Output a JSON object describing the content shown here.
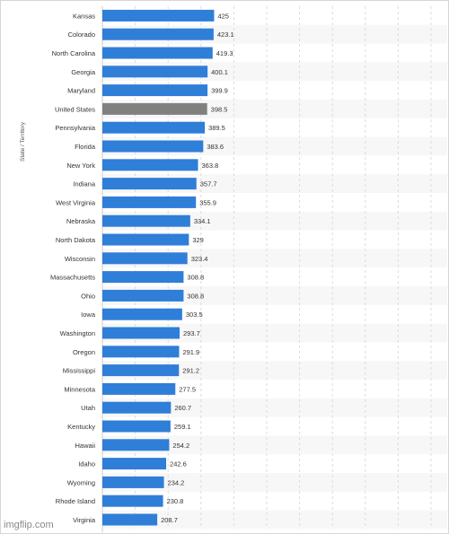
{
  "chart_data": {
    "type": "bar",
    "orientation": "horizontal",
    "ylabel": "State / Territory",
    "categories": [
      "Kansas",
      "Colorado",
      "North Carolina",
      "Georgia",
      "Maryland",
      "United States",
      "Pennsylvania",
      "Florida",
      "New York",
      "Indiana",
      "West Virginia",
      "Nebraska",
      "North Dakota",
      "Wisconsin",
      "Massachusetts",
      "Ohio",
      "Iowa",
      "Washington",
      "Oregon",
      "Mississippi",
      "Minnesota",
      "Utah",
      "Kentucky",
      "Hawaii",
      "Idaho",
      "Wyoming",
      "Rhode Island",
      "Virginia"
    ],
    "values": [
      425,
      423.1,
      419.3,
      400.1,
      399.9,
      398.5,
      389.5,
      383.6,
      363.8,
      357.7,
      355.9,
      334.1,
      329,
      323.4,
      308.8,
      308.8,
      303.5,
      293.7,
      291.9,
      291.2,
      277.5,
      260.7,
      259.1,
      254.2,
      242.6,
      234.2,
      230.8,
      208.7
    ],
    "value_labels": [
      "425",
      "423.1",
      "419.3",
      "400.1",
      "399.9",
      "398.5",
      "389.5",
      "383.6",
      "363.8",
      "357.7",
      "355.9",
      "334.1",
      "329",
      "323.4",
      "308.8",
      "308.8",
      "303.5",
      "293.7",
      "291.9",
      "291.2",
      "277.5",
      "260.7",
      "259.1",
      "254.2",
      "242.6",
      "234.2",
      "230.8",
      "208.7"
    ],
    "highlight_category": "United States",
    "xlim": [
      0,
      1250
    ],
    "grid": true,
    "colors": {
      "bar": "#2f7ed8",
      "highlight": "#808080",
      "stripe": "#f7f7f7",
      "grid": "#dcdcdc"
    }
  },
  "watermark": "imgflip.com"
}
